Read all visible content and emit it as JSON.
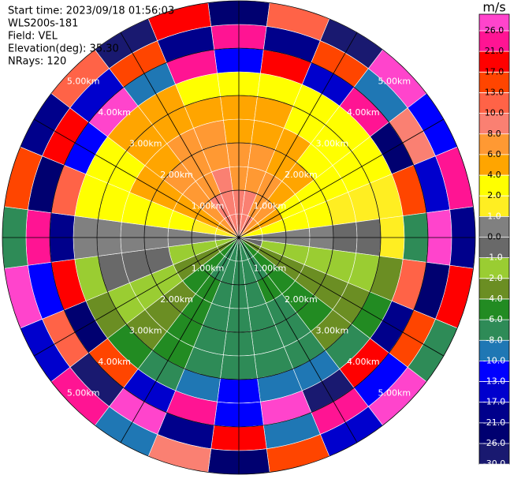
{
  "chart_data": {
    "type": "polar_ppi",
    "info": [
      "Start time: 2023/09/18 01:56:03",
      "WLS200s-181",
      "Field: VEL",
      "Elevation(deg): 35.30",
      "NRays: 120"
    ],
    "colorbar_label": "m/s",
    "colorbar_ticks": [
      {
        "value": 26,
        "label": "26.0"
      },
      {
        "value": 21,
        "label": "21.0"
      },
      {
        "value": 17,
        "label": "17.0"
      },
      {
        "value": 13,
        "label": "13.0"
      },
      {
        "value": 10,
        "label": "10.0"
      },
      {
        "value": 8,
        "label": "8.0"
      },
      {
        "value": 6,
        "label": "6.0"
      },
      {
        "value": 4,
        "label": "4.0"
      },
      {
        "value": 2,
        "label": "2.0"
      },
      {
        "value": 1,
        "label": "1.0"
      },
      {
        "value": 0,
        "label": "0.0"
      },
      {
        "value": -1,
        "label": "-1.0"
      },
      {
        "value": -2,
        "label": "-2.0"
      },
      {
        "value": -4,
        "label": "-4.0"
      },
      {
        "value": -6,
        "label": "-6.0"
      },
      {
        "value": -8,
        "label": "-8.0"
      },
      {
        "value": -10,
        "label": "-10.0"
      },
      {
        "value": -13,
        "label": "-13.0"
      },
      {
        "value": -17,
        "label": "-17.0"
      },
      {
        "value": -21,
        "label": "-21.0"
      },
      {
        "value": -26,
        "label": "-26.0"
      },
      {
        "value": -30,
        "label": "-30.0"
      }
    ],
    "colors": [
      "#ff44cc",
      "#ff1493",
      "#ff0000",
      "#ff4500",
      "#ff6347",
      "#fa8072",
      "#ff9933",
      "#ffa500",
      "#ffff00",
      "#ffee22",
      "#808080",
      "#696969",
      "#9acd32",
      "#6b8e23",
      "#228b22",
      "#2e8b57",
      "#1f77b4",
      "#0000ff",
      "#0000cd",
      "#00008b",
      "#000070",
      "#191970"
    ],
    "range_rings": [
      {
        "value": 1,
        "label": "1.00km"
      },
      {
        "value": 2,
        "label": "2.00km"
      },
      {
        "value": 3,
        "label": "3.00km"
      },
      {
        "value": 4,
        "label": "4.00km"
      },
      {
        "value": 5,
        "label": "5.00km"
      }
    ],
    "azimuths": [
      0,
      15,
      30,
      45,
      60,
      75,
      90,
      105,
      120,
      135,
      150,
      165,
      180,
      195,
      210,
      225,
      240,
      255,
      270,
      285,
      300,
      315,
      330,
      345
    ],
    "gates": [
      0,
      0.5,
      1,
      1.5,
      2,
      2.5,
      3,
      3.5,
      4,
      4.5,
      5
    ],
    "values": [
      [
        9,
        8,
        7,
        6,
        5,
        5,
        3,
        -13,
        21,
        -26
      ],
      [
        9,
        8,
        7,
        6,
        5,
        4,
        3,
        17,
        -21,
        10
      ],
      [
        8,
        7,
        6,
        5,
        5,
        3,
        3,
        -17,
        13,
        -30
      ],
      [
        6,
        6,
        5,
        4,
        3,
        3,
        2,
        21,
        -10,
        26
      ],
      [
        4,
        4,
        3,
        3,
        3,
        2,
        2,
        -26,
        8,
        -13
      ],
      [
        2,
        2,
        2,
        2,
        1.5,
        1.5,
        1,
        13,
        -17,
        21
      ],
      [
        0.5,
        0.5,
        0.5,
        0.5,
        -0.5,
        -1,
        1,
        -8,
        26,
        -21
      ],
      [
        -1,
        -1.5,
        -1.5,
        -1.5,
        -2,
        -2,
        -3,
        10,
        -26,
        17
      ],
      [
        -3,
        -3,
        -3,
        -3,
        -3,
        -3,
        -5,
        -21,
        13,
        -8
      ],
      [
        -5,
        -5,
        -5,
        -5,
        -5,
        -4,
        -7,
        17,
        -13,
        30
      ],
      [
        -7,
        -7,
        -6,
        -7,
        -7,
        -7,
        -9,
        -30,
        21,
        -17
      ],
      [
        -7,
        -7,
        -7,
        -7,
        -7,
        -7,
        -9,
        26,
        -10,
        13
      ],
      [
        -7,
        -7,
        -7,
        -7,
        -7,
        -7,
        -11,
        -13,
        17,
        -26
      ],
      [
        -7,
        -7,
        -7,
        -7,
        -7,
        -7,
        -9,
        21,
        -21,
        8
      ],
      [
        -7,
        -7,
        -6,
        -6,
        -5,
        -5,
        -7,
        -17,
        26,
        -10
      ],
      [
        -5,
        -5,
        -5,
        -3,
        -3,
        -3,
        -5,
        13,
        -30,
        21
      ],
      [
        -3,
        -3,
        -3,
        -1.5,
        -1.5,
        -1.5,
        -3,
        -26,
        10,
        -17
      ],
      [
        -1.5,
        -1.5,
        -1.5,
        -0.5,
        -0.5,
        -0.5,
        -2,
        17,
        -13,
        26
      ],
      [
        0.5,
        0.5,
        0.5,
        0.5,
        0.5,
        0.5,
        0.5,
        -21,
        21,
        -8
      ],
      [
        1.5,
        1.5,
        3,
        3,
        3,
        3,
        3,
        10,
        -26,
        13
      ],
      [
        5,
        5,
        5,
        5,
        5,
        3,
        3,
        -13,
        17,
        -21
      ],
      [
        7,
        7,
        7,
        7,
        5,
        5,
        5,
        26,
        -17,
        10
      ],
      [
        9,
        9,
        7,
        7,
        7,
        5,
        5,
        -10,
        13,
        -30
      ],
      [
        9,
        9,
        8,
        7,
        6,
        5,
        3,
        21,
        -21,
        17
      ]
    ]
  }
}
